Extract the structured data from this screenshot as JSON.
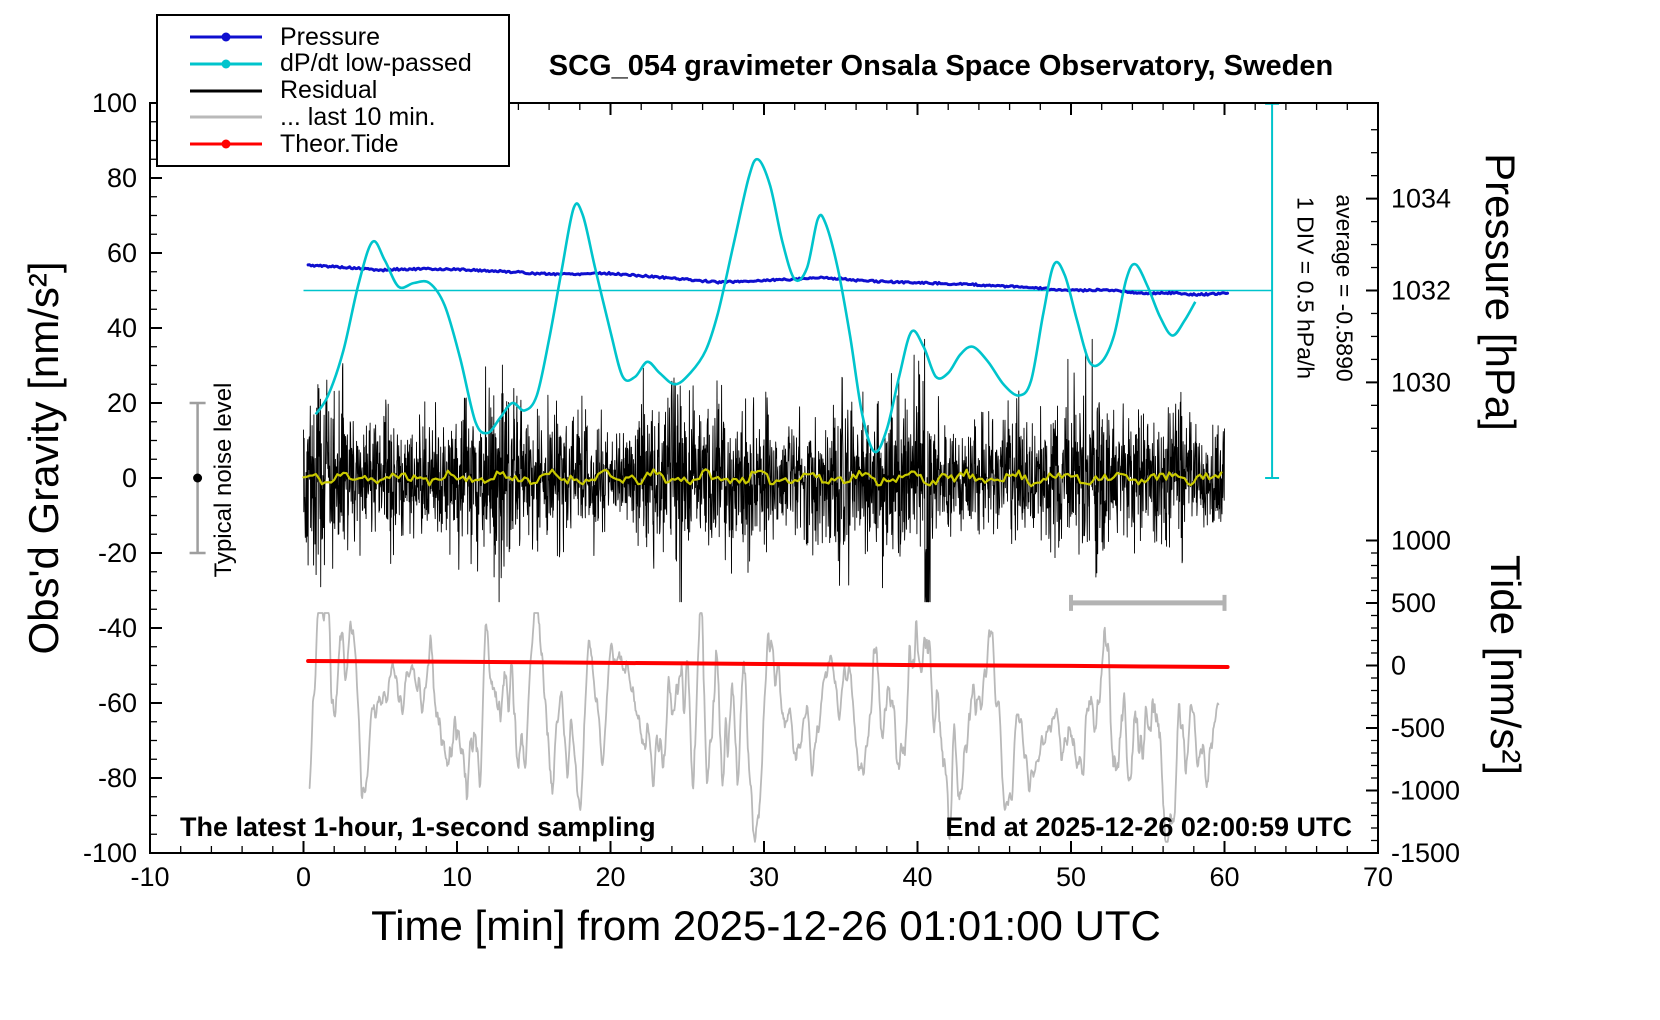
{
  "title": "SCG_054 gravimeter Onsala Space Observatory, Sweden",
  "labels": {
    "xlabel": "Time [min] from 2025-12-26 01:01:00 UTC",
    "ylabel_left": "Obs'd Gravity [nm/s²]",
    "ylabel_pressure": "Pressure [hPa]",
    "ylabel_tide": "Tide [nm/s²]"
  },
  "annotations": {
    "noise_level": "Typical noise level",
    "div_scale": "1 DIV = 0.5 hPa/h",
    "average": "average = -0.5890",
    "sampling": "The latest 1-hour, 1-second sampling",
    "end_time": "End at 2025-12-26 02:00:59 UTC"
  },
  "legend": {
    "items": [
      {
        "label": "Pressure",
        "color": "#0f0fcf",
        "marker": "dot-line"
      },
      {
        "label": "dP/dt low-passed",
        "color": "#00c4cc",
        "marker": "dot-line"
      },
      {
        "label": "Residual",
        "color": "#000000",
        "marker": "line"
      },
      {
        "label": "... last 10 min.",
        "color": "#b9b9b9",
        "marker": "line"
      },
      {
        "label": "Theor.Tide",
        "color": "#ff0000",
        "marker": "dot-line"
      }
    ]
  },
  "chart_data": {
    "type": "line",
    "title": "SCG_054 gravimeter Onsala Space Observatory, Sweden",
    "xlabel": "Time [min] from 2025-12-26 01:01:00 UTC",
    "axes": {
      "x": {
        "label": "Time [min] from 2025-12-26 01:01:00 UTC",
        "range": [
          -10,
          70
        ],
        "major_ticks": [
          -10,
          0,
          10,
          20,
          30,
          40,
          50,
          60,
          70
        ],
        "minor_step": 2
      },
      "gravity": {
        "label": "Obs'd Gravity [nm/s²]",
        "range": [
          -100,
          100
        ],
        "major_ticks": [
          -100,
          -80,
          -60,
          -40,
          -20,
          0,
          20,
          40,
          60,
          80,
          100
        ],
        "minor_step": 5
      },
      "pressure": {
        "label": "Pressure [hPa]",
        "ticks": [
          1030,
          1032,
          1034
        ],
        "minor_step": 0.5,
        "ref_hpa": 1032,
        "ref_display_y": 50,
        "display_units_per_hpa": 12.25
      },
      "tide": {
        "label": "Tide [nm/s²]",
        "ticks": [
          1000,
          500,
          0,
          -500,
          -1000,
          -1500
        ],
        "minor_step": 100,
        "display_map": "y = -50 + tide/30"
      }
    },
    "colors": {
      "pressure": "#0f0fcf",
      "dpdt": "#00c4cc",
      "residual": "#000000",
      "last10": "#b9b9b9",
      "tide": "#ff0000",
      "lowpassed_yellow": "#c9c900",
      "marker_gray": "#9e9e9e",
      "bar_gray": "#b3b3b3"
    },
    "series": {
      "pressure_hpa": {
        "name": "Pressure",
        "units": "hPa",
        "points": [
          [
            0.3,
            1032.55
          ],
          [
            2,
            1032.52
          ],
          [
            4,
            1032.47
          ],
          [
            5,
            1032.44
          ],
          [
            6,
            1032.46
          ],
          [
            8,
            1032.47
          ],
          [
            10,
            1032.46
          ],
          [
            12,
            1032.43
          ],
          [
            14,
            1032.4
          ],
          [
            15,
            1032.37
          ],
          [
            16,
            1032.36
          ],
          [
            18,
            1032.36
          ],
          [
            19,
            1032.38
          ],
          [
            20,
            1032.37
          ],
          [
            22,
            1032.32
          ],
          [
            24,
            1032.27
          ],
          [
            26,
            1032.21
          ],
          [
            27,
            1032.18
          ],
          [
            28,
            1032.19
          ],
          [
            30,
            1032.22
          ],
          [
            32,
            1032.25
          ],
          [
            33.5,
            1032.28
          ],
          [
            35,
            1032.26
          ],
          [
            36,
            1032.22
          ],
          [
            38,
            1032.19
          ],
          [
            40,
            1032.17
          ],
          [
            42,
            1032.15
          ],
          [
            44,
            1032.12
          ],
          [
            46,
            1032.09
          ],
          [
            48,
            1032.05
          ],
          [
            49.5,
            1032.0
          ],
          [
            51,
            1032.0
          ],
          [
            52,
            1032.02
          ],
          [
            53,
            1032.0
          ],
          [
            54,
            1031.96
          ],
          [
            55,
            1031.93
          ],
          [
            56,
            1031.95
          ],
          [
            57,
            1031.94
          ],
          [
            58,
            1031.91
          ],
          [
            59,
            1031.92
          ],
          [
            60.2,
            1031.94
          ]
        ]
      },
      "dpdt_lowpassed": {
        "name": "dP/dt low-passed",
        "units": "display (left axis); 1 DIV = 0.5 hPa/h; zero line at display y = 50",
        "points": [
          [
            0.8,
            17
          ],
          [
            1.6,
            22
          ],
          [
            2.6,
            34
          ],
          [
            3.6,
            52
          ],
          [
            4.5,
            63
          ],
          [
            5.3,
            58
          ],
          [
            6.2,
            51
          ],
          [
            7.2,
            52
          ],
          [
            8.2,
            52
          ],
          [
            9.2,
            46
          ],
          [
            10.2,
            32
          ],
          [
            11.2,
            15
          ],
          [
            12.0,
            12
          ],
          [
            12.8,
            16
          ],
          [
            13.6,
            20
          ],
          [
            14.4,
            18
          ],
          [
            15.2,
            22
          ],
          [
            16.0,
            37
          ],
          [
            16.8,
            55
          ],
          [
            17.6,
            72
          ],
          [
            18.2,
            70
          ],
          [
            19.0,
            56
          ],
          [
            20.0,
            39
          ],
          [
            20.8,
            27
          ],
          [
            21.6,
            27
          ],
          [
            22.4,
            31
          ],
          [
            23.2,
            28
          ],
          [
            24.2,
            25
          ],
          [
            25.2,
            28
          ],
          [
            26.2,
            34
          ],
          [
            27.0,
            44
          ],
          [
            28.0,
            62
          ],
          [
            29.0,
            80
          ],
          [
            29.6,
            85
          ],
          [
            30.4,
            78
          ],
          [
            31.2,
            63
          ],
          [
            32.0,
            53
          ],
          [
            32.8,
            56
          ],
          [
            33.5,
            69
          ],
          [
            34.0,
            68
          ],
          [
            34.8,
            56
          ],
          [
            35.6,
            38
          ],
          [
            36.4,
            17
          ],
          [
            37.2,
            7
          ],
          [
            38.0,
            13
          ],
          [
            38.8,
            27
          ],
          [
            39.6,
            39
          ],
          [
            40.4,
            35
          ],
          [
            41.2,
            27
          ],
          [
            42.0,
            28
          ],
          [
            42.8,
            33
          ],
          [
            43.6,
            35
          ],
          [
            44.6,
            31
          ],
          [
            45.6,
            25
          ],
          [
            46.6,
            22
          ],
          [
            47.4,
            26
          ],
          [
            48.2,
            44
          ],
          [
            48.9,
            57
          ],
          [
            49.6,
            54
          ],
          [
            50.4,
            42
          ],
          [
            51.2,
            31
          ],
          [
            52.0,
            31
          ],
          [
            52.8,
            38
          ],
          [
            53.6,
            53
          ],
          [
            54.2,
            57
          ],
          [
            55.0,
            51
          ],
          [
            55.8,
            43
          ],
          [
            56.6,
            38
          ],
          [
            57.4,
            42
          ],
          [
            58.1,
            47
          ]
        ]
      },
      "theor_tide": {
        "name": "Theor.Tide",
        "units": "nm/s² (right tide axis)",
        "points": [
          [
            0.3,
            36
          ],
          [
            5,
            33
          ],
          [
            10,
            30
          ],
          [
            15,
            26
          ],
          [
            20,
            21
          ],
          [
            25,
            17
          ],
          [
            30,
            12
          ],
          [
            35,
            8
          ],
          [
            40,
            3
          ],
          [
            45,
            0
          ],
          [
            50,
            -3
          ],
          [
            55,
            -8
          ],
          [
            60.2,
            -12
          ]
        ]
      },
      "residual": {
        "name": "Residual",
        "type": "generated-noise",
        "baseline": 0,
        "typical_std_nm": 9.5,
        "peak_range": [
          -33,
          37
        ],
        "spike_x": 40.6,
        "x_range": [
          0,
          60
        ],
        "sampling": "1 s",
        "seed": 42
      },
      "residual_lowpassed": {
        "name": "Residual low-passed (yellow)",
        "type": "generated-noise",
        "display_baseline": 0,
        "amplitude": 1.8,
        "x_range": [
          0,
          60
        ],
        "seed": 11
      },
      "residual_last10_expanded": {
        "name": "... last 10 min.",
        "type": "generated-noise",
        "display_baseline": -65,
        "typical_std_display": 9,
        "x_range": [
          0.4,
          59.6
        ],
        "seed": 7
      }
    },
    "markers": {
      "noise_level_bar": {
        "x": -6.9,
        "y_min": -20,
        "y_max": 20,
        "dot_y": 0,
        "label": "Typical noise level"
      },
      "last10_range_bar": {
        "x_min": 50,
        "x_max": 60,
        "y": -33.3
      },
      "pressure_ref_line": {
        "display_y": 50,
        "pressure_hpa": 1032,
        "x_min": 0,
        "x_max": 63.1
      },
      "dpdt_ruler": {
        "x": 63.1,
        "y_min": 0,
        "y_max": 99.8,
        "div_label": "1 DIV = 0.5 hPa/h",
        "average_label": "average = -0.5890"
      }
    }
  }
}
